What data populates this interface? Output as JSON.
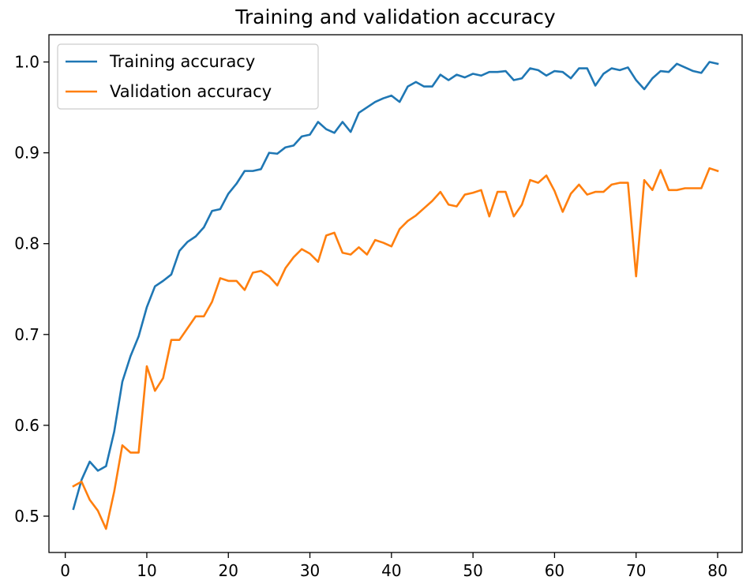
{
  "chart_data": {
    "type": "line",
    "title": "Training and validation accuracy",
    "xlabel": "",
    "ylabel": "",
    "xlim": [
      -2,
      83
    ],
    "ylim": [
      0.46,
      1.03
    ],
    "xticks": [
      0,
      10,
      20,
      30,
      40,
      50,
      60,
      70,
      80
    ],
    "yticks": [
      0.5,
      0.6,
      0.7,
      0.8,
      0.9,
      1.0
    ],
    "xtick_labels": [
      "0",
      "10",
      "20",
      "30",
      "40",
      "50",
      "60",
      "70",
      "80"
    ],
    "ytick_labels": [
      "0.5",
      "0.6",
      "0.7",
      "0.8",
      "0.9",
      "1.0"
    ],
    "grid": false,
    "legend_position": "top-left",
    "x": [
      1,
      2,
      3,
      4,
      5,
      6,
      7,
      8,
      9,
      10,
      11,
      12,
      13,
      14,
      15,
      16,
      17,
      18,
      19,
      20,
      21,
      22,
      23,
      24,
      25,
      26,
      27,
      28,
      29,
      30,
      31,
      32,
      33,
      34,
      35,
      36,
      37,
      38,
      39,
      40,
      41,
      42,
      43,
      44,
      45,
      46,
      47,
      48,
      49,
      50,
      51,
      52,
      53,
      54,
      55,
      56,
      57,
      58,
      59,
      60,
      61,
      62,
      63,
      64,
      65,
      66,
      67,
      68,
      69,
      70,
      71,
      72,
      73,
      74,
      75,
      76,
      77,
      78,
      79,
      80
    ],
    "series": [
      {
        "name": "Training accuracy",
        "color": "#1f77b4",
        "values": [
          0.508,
          0.54,
          0.56,
          0.55,
          0.555,
          0.593,
          0.648,
          0.676,
          0.698,
          0.73,
          0.753,
          0.759,
          0.766,
          0.792,
          0.802,
          0.808,
          0.818,
          0.836,
          0.838,
          0.855,
          0.866,
          0.88,
          0.88,
          0.882,
          0.9,
          0.899,
          0.906,
          0.908,
          0.918,
          0.92,
          0.934,
          0.926,
          0.922,
          0.934,
          0.923,
          0.944,
          0.95,
          0.956,
          0.96,
          0.963,
          0.956,
          0.973,
          0.978,
          0.973,
          0.973,
          0.986,
          0.98,
          0.986,
          0.983,
          0.987,
          0.985,
          0.989,
          0.989,
          0.99,
          0.98,
          0.982,
          0.993,
          0.991,
          0.985,
          0.99,
          0.989,
          0.982,
          0.993,
          0.993,
          0.974,
          0.987,
          0.993,
          0.991,
          0.994,
          0.98,
          0.97,
          0.982,
          0.99,
          0.989,
          0.998,
          0.994,
          0.99,
          0.988,
          1.0,
          0.998
        ]
      },
      {
        "name": "Validation accuracy",
        "color": "#ff7f0e",
        "values": [
          0.533,
          0.538,
          0.518,
          0.506,
          0.486,
          0.527,
          0.578,
          0.57,
          0.57,
          0.665,
          0.638,
          0.652,
          0.694,
          0.694,
          0.707,
          0.72,
          0.72,
          0.736,
          0.762,
          0.759,
          0.759,
          0.749,
          0.768,
          0.77,
          0.764,
          0.754,
          0.773,
          0.785,
          0.794,
          0.789,
          0.78,
          0.809,
          0.812,
          0.79,
          0.788,
          0.796,
          0.788,
          0.804,
          0.801,
          0.797,
          0.816,
          0.825,
          0.831,
          0.839,
          0.847,
          0.857,
          0.843,
          0.841,
          0.854,
          0.856,
          0.859,
          0.83,
          0.857,
          0.857,
          0.83,
          0.843,
          0.87,
          0.867,
          0.875,
          0.858,
          0.835,
          0.855,
          0.865,
          0.854,
          0.857,
          0.857,
          0.865,
          0.867,
          0.867,
          0.764,
          0.87,
          0.859,
          0.881,
          0.859,
          0.859,
          0.861,
          0.861,
          0.861,
          0.883,
          0.88
        ]
      }
    ]
  }
}
